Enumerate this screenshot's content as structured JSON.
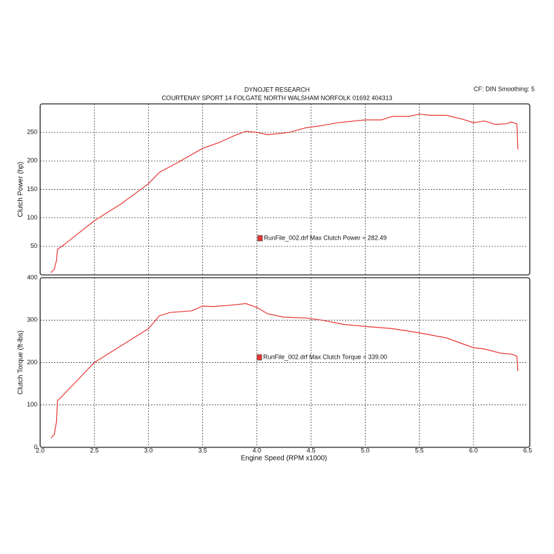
{
  "header": {
    "title": "DYNOJET RESEARCH",
    "subtitle": "COURTENAY SPORT 14 FOLGATE NORTH WALSHAM NORFOLK 01692 404313",
    "settings": "CF: DIN  Smoothing: 5"
  },
  "chart_data": [
    {
      "type": "line",
      "y_label": "Clutch Power (hp)",
      "x": [
        2.1,
        2.13,
        2.15,
        2.16,
        2.2,
        2.5,
        2.75,
        3.0,
        3.1,
        3.25,
        3.5,
        3.65,
        3.8,
        3.9,
        4.0,
        4.1,
        4.3,
        4.45,
        4.6,
        4.75,
        4.9,
        5.0,
        5.15,
        5.25,
        5.4,
        5.5,
        5.6,
        5.75,
        5.9,
        6.0,
        6.1,
        6.2,
        6.3,
        6.35,
        6.4,
        6.41
      ],
      "series": [
        {
          "name": "RunFile_002.drf",
          "color": "#e8342f",
          "values": [
            4,
            10,
            25,
            45,
            50,
            95,
            125,
            160,
            180,
            195,
            222,
            232,
            245,
            252,
            250,
            246,
            250,
            258,
            262,
            267,
            270,
            272,
            272,
            278,
            278,
            282,
            280,
            280,
            273,
            267,
            270,
            264,
            265,
            268,
            265,
            220
          ]
        }
      ],
      "annotation": "RunFile_002.drf Max Clutch Power = 282.49",
      "xlim": [
        2.0,
        6.5
      ],
      "xticks": [
        2.5,
        3,
        3.5,
        4,
        4.5,
        5,
        5.5,
        6
      ],
      "ylim": [
        0,
        300
      ],
      "yticks": [
        50,
        100,
        150,
        200,
        250
      ],
      "grid": true
    },
    {
      "type": "line",
      "y_label": "Clutch Torque (ft-lbs)",
      "x_label": "Engine Speed (RPM x1000)",
      "x": [
        2.1,
        2.13,
        2.15,
        2.16,
        2.2,
        2.5,
        2.75,
        3.0,
        3.1,
        3.2,
        3.4,
        3.5,
        3.6,
        3.75,
        3.9,
        4.0,
        4.1,
        4.25,
        4.45,
        4.6,
        4.8,
        5.0,
        5.25,
        5.5,
        5.75,
        6.0,
        6.1,
        6.25,
        6.35,
        6.4,
        6.41
      ],
      "series": [
        {
          "name": "RunFile_002.drf",
          "color": "#e8342f",
          "values": [
            22,
            30,
            60,
            110,
            120,
            200,
            240,
            280,
            310,
            318,
            322,
            333,
            332,
            335,
            339,
            330,
            315,
            307,
            305,
            300,
            290,
            285,
            280,
            270,
            258,
            235,
            232,
            222,
            220,
            215,
            180
          ]
        }
      ],
      "annotation": "RunFile_002.drf Max Clutch Torque = 339.00",
      "xlim": [
        2.0,
        6.5
      ],
      "xticks": [
        {
          "value": 2,
          "label": "2.0"
        },
        2.5,
        {
          "value": 3,
          "label": "3.0"
        },
        3.5,
        {
          "value": 4,
          "label": "4.0"
        },
        4.5,
        {
          "value": 5,
          "label": "5.0"
        },
        5.5,
        {
          "value": 6,
          "label": "6.0"
        },
        6.5
      ],
      "ylim": [
        0,
        400
      ],
      "yticks": [
        0,
        100,
        200,
        300,
        400
      ],
      "grid": true
    }
  ]
}
